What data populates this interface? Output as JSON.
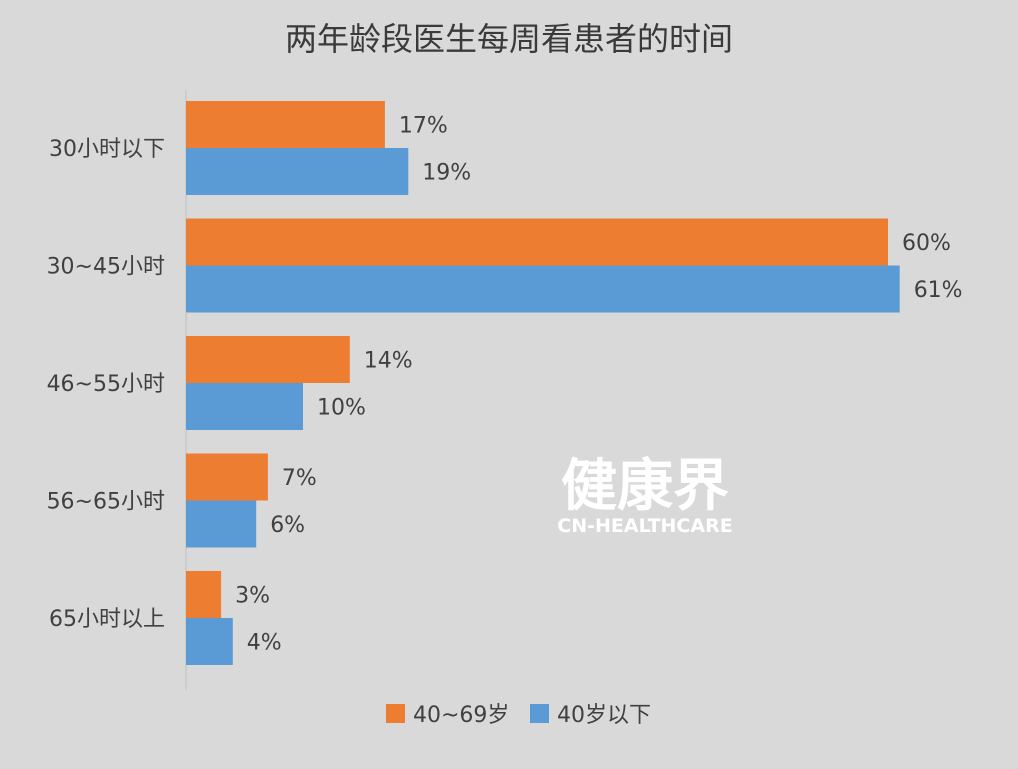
{
  "chart_data": {
    "type": "bar",
    "orientation": "horizontal",
    "title": "两年龄段医生每周看患者的时间",
    "categories": [
      "30小时以下",
      "30~45小时",
      "46~55小时",
      "56~65小时",
      "65小时以上"
    ],
    "series": [
      {
        "name": "40~69岁",
        "color": "#ed7d31",
        "values": [
          17,
          60,
          14,
          7,
          3
        ],
        "labels": [
          "17%",
          "60%",
          "14%",
          "7%",
          "3%"
        ]
      },
      {
        "name": "40岁以下",
        "color": "#5b9bd5",
        "values": [
          19,
          61,
          10,
          6,
          4
        ],
        "labels": [
          "19%",
          "61%",
          "10%",
          "6%",
          "4%"
        ]
      }
    ],
    "xlim": [
      0,
      100
    ],
    "grid": false,
    "legend": "bottom"
  },
  "watermark": {
    "main": "健康界",
    "sub": "CN-HEALTHCARE"
  }
}
